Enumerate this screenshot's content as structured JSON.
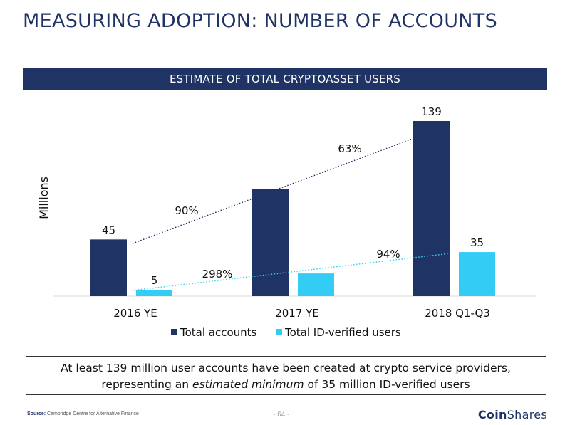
{
  "header": {
    "title": "MEASURING ADOPTION: NUMBER OF ACCOUNTS"
  },
  "banner": {
    "title": "ESTIMATE OF TOTAL CRYPTOASSET USERS"
  },
  "chart_data": {
    "type": "bar",
    "title": "ESTIMATE OF TOTAL CRYPTOASSET USERS",
    "ylabel": "Millions",
    "xlabel": "",
    "ylim": [
      0,
      150
    ],
    "grid": false,
    "legend": "bottom",
    "categories": [
      "2016 YE",
      "2017 YE",
      "2018 Q1-Q3"
    ],
    "series": [
      {
        "name": "Total accounts",
        "values": [
          45,
          85,
          139
        ],
        "labels": [
          "45",
          "",
          "139"
        ],
        "color": "#1f3465"
      },
      {
        "name": "Total ID-verified users",
        "values": [
          5,
          18,
          35
        ],
        "labels": [
          "5",
          "",
          "35"
        ],
        "color": "#33ccf5"
      }
    ],
    "growth_annotations": [
      {
        "series": "Total accounts",
        "from": "2016 YE",
        "to": "2017 YE",
        "text": "90%"
      },
      {
        "series": "Total accounts",
        "from": "2017 YE",
        "to": "2018 Q1-Q3",
        "text": "63%"
      },
      {
        "series": "Total ID-verified users",
        "from": "2016 YE",
        "to": "2017 YE",
        "text": "298%"
      },
      {
        "series": "Total ID-verified users",
        "from": "2017 YE",
        "to": "2018 Q1-Q3",
        "text": "94%"
      }
    ]
  },
  "note": {
    "line1": "At least 139 million user accounts have been created at crypto service providers,",
    "line2_pre": "representing an ",
    "line2_em": "estimated minimum",
    "line2_post": " of 35 million ID-verified users"
  },
  "footer": {
    "source_label": "Source:",
    "source_text": "Cambridge Centre for Alternative Finance",
    "page_number": "- 64 -",
    "logo_bold": "Coin",
    "logo_rest": "Shares"
  }
}
